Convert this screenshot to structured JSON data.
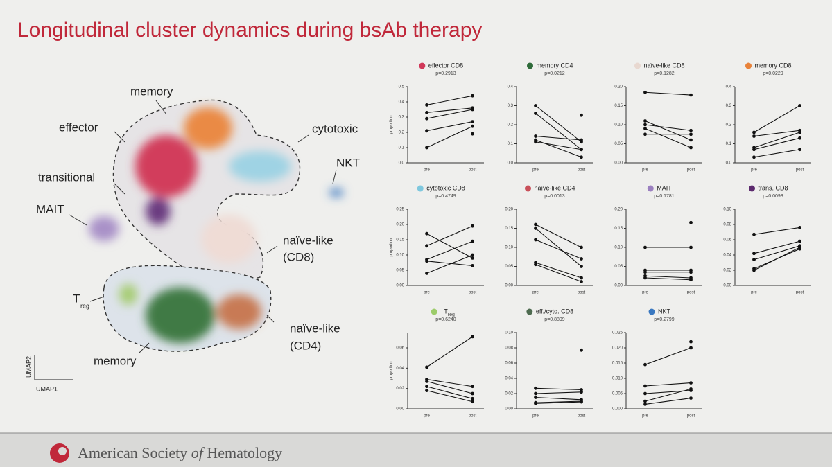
{
  "title": "Longitudinal cluster dynamics during bsAb therapy",
  "umap": {
    "labels": [
      "memory",
      "effector",
      "transitional",
      "MAIT",
      "cytotoxic",
      "NKT",
      "naïve-like",
      "(CD8)",
      "T",
      "reg",
      "memory",
      "naïve-like",
      "(CD4)"
    ],
    "xlabel": "UMAP1",
    "ylabel": "UMAP2"
  },
  "footer": {
    "org_a": "American Society",
    "org_of": "of",
    "org_b": "Hematology"
  },
  "chart_data": [
    {
      "type": "line",
      "title": "effector CD8",
      "subtitle": "p=0.2913",
      "color": "#d1395a",
      "ylabel": "proportion",
      "categories": [
        "pre",
        "post"
      ],
      "ylim": [
        0,
        0.5
      ],
      "yticks": [
        {
          "value": 0,
          "label": "0.0"
        },
        0.1,
        0.2,
        0.3,
        0.4,
        0.5
      ],
      "series": [
        {
          "values": [
            0.38,
            0.44
          ]
        },
        {
          "values": [
            0.33,
            0.36
          ]
        },
        {
          "values": [
            0.29,
            0.35
          ]
        },
        {
          "values": [
            0.21,
            0.27
          ]
        },
        {
          "values": [
            0.1,
            0.24
          ]
        },
        {
          "values": [
            null,
            0.19
          ]
        }
      ]
    },
    {
      "type": "line",
      "title": "memory CD4",
      "subtitle": "p=0.0212",
      "color": "#2f6b3a",
      "categories": [
        "pre",
        "post"
      ],
      "ylim": [
        0,
        0.4
      ],
      "yticks": [
        {
          "value": 0,
          "label": "0.0"
        },
        0.1,
        0.2,
        0.3,
        0.4
      ],
      "series": [
        {
          "values": [
            0.3,
            0.11
          ]
        },
        {
          "values": [
            0.26,
            0.07
          ]
        },
        {
          "values": [
            0.14,
            0.12
          ]
        },
        {
          "values": [
            0.12,
            0.03
          ]
        },
        {
          "values": [
            0.11,
            0.07
          ]
        },
        {
          "values": [
            null,
            0.25
          ]
        }
      ]
    },
    {
      "type": "line",
      "title": "naïve-like CD8",
      "subtitle": "p=0.1282",
      "color": "#e8d8d0",
      "categories": [
        "pre",
        "post"
      ],
      "ylim": [
        0,
        0.2
      ],
      "yticks": [
        {
          "value": 0,
          "label": "0.00"
        },
        0.05,
        {
          "value": 0.1,
          "label": "0.10"
        },
        0.15,
        {
          "value": 0.2,
          "label": "0.20"
        }
      ],
      "series": [
        {
          "values": [
            0.185,
            0.178
          ]
        },
        {
          "values": [
            0.11,
            0.06
          ]
        },
        {
          "values": [
            0.1,
            0.085
          ]
        },
        {
          "values": [
            0.09,
            0.04
          ]
        },
        {
          "values": [
            0.075,
            0.075
          ]
        }
      ]
    },
    {
      "type": "line",
      "title": "memory CD8",
      "subtitle": "p=0.0229",
      "color": "#e8823a",
      "categories": [
        "pre",
        "post"
      ],
      "ylim": [
        0,
        0.4
      ],
      "yticks": [
        {
          "value": 0,
          "label": "0.0"
        },
        0.1,
        0.2,
        0.3,
        0.4
      ],
      "series": [
        {
          "values": [
            0.16,
            0.3
          ]
        },
        {
          "values": [
            0.14,
            0.17
          ]
        },
        {
          "values": [
            0.08,
            0.16
          ]
        },
        {
          "values": [
            0.07,
            0.13
          ]
        },
        {
          "values": [
            0.03,
            0.07
          ]
        }
      ]
    },
    {
      "type": "line",
      "title": "cytotoxic CD8",
      "subtitle": "p=0.4749",
      "color": "#7fc8de",
      "ylabel": "proportion",
      "categories": [
        "pre",
        "post"
      ],
      "ylim": [
        0,
        0.25
      ],
      "yticks": [
        {
          "value": 0,
          "label": "0.00"
        },
        0.05,
        {
          "value": 0.1,
          "label": "0.10"
        },
        0.15,
        {
          "value": 0.2,
          "label": "0.20"
        },
        0.25
      ],
      "series": [
        {
          "values": [
            0.17,
            0.09
          ]
        },
        {
          "values": [
            0.13,
            0.195
          ]
        },
        {
          "values": [
            0.085,
            0.145
          ]
        },
        {
          "values": [
            0.08,
            0.065
          ]
        },
        {
          "values": [
            0.04,
            0.1
          ]
        }
      ]
    },
    {
      "type": "line",
      "title": "naïve-like CD4",
      "subtitle": "p=0.0013",
      "color": "#c9505a",
      "categories": [
        "pre",
        "post"
      ],
      "ylim": [
        0,
        0.2
      ],
      "yticks": [
        {
          "value": 0,
          "label": "0.00"
        },
        0.05,
        {
          "value": 0.1,
          "label": "0.10"
        },
        0.15,
        {
          "value": 0.2,
          "label": "0.20"
        }
      ],
      "series": [
        {
          "values": [
            0.16,
            0.1
          ]
        },
        {
          "values": [
            0.15,
            0.05
          ]
        },
        {
          "values": [
            0.12,
            0.07
          ]
        },
        {
          "values": [
            0.06,
            0.02
          ]
        },
        {
          "values": [
            0.055,
            0.01
          ]
        }
      ]
    },
    {
      "type": "line",
      "title": "MAIT",
      "subtitle": "p=0.1781",
      "color": "#9b80c0",
      "categories": [
        "pre",
        "post"
      ],
      "ylim": [
        0,
        0.2
      ],
      "yticks": [
        {
          "value": 0,
          "label": "0.00"
        },
        0.05,
        {
          "value": 0.1,
          "label": "0.10"
        },
        0.15,
        {
          "value": 0.2,
          "label": "0.20"
        }
      ],
      "series": [
        {
          "values": [
            0.1,
            0.1
          ]
        },
        {
          "values": [
            0.04,
            0.04
          ]
        },
        {
          "values": [
            0.035,
            0.035
          ]
        },
        {
          "values": [
            0.025,
            0.02
          ]
        },
        {
          "values": [
            0.02,
            0.015
          ]
        },
        {
          "values": [
            null,
            0.165
          ]
        }
      ]
    },
    {
      "type": "line",
      "title": "trans. CD8",
      "subtitle": "p=0.0093",
      "color": "#5c2a6e",
      "categories": [
        "pre",
        "post"
      ],
      "ylim": [
        0,
        0.1
      ],
      "yticks": [
        {
          "value": 0,
          "label": "0.00"
        },
        0.02,
        0.04,
        0.06,
        0.08,
        {
          "value": 0.1,
          "label": "0.10"
        }
      ],
      "series": [
        {
          "values": [
            0.067,
            0.076
          ]
        },
        {
          "values": [
            0.042,
            0.058
          ]
        },
        {
          "values": [
            0.034,
            0.052
          ]
        },
        {
          "values": [
            0.022,
            0.048
          ]
        },
        {
          "values": [
            0.02,
            0.05
          ]
        }
      ]
    },
    {
      "type": "line",
      "title": "T",
      "title_sub": "reg",
      "subtitle": "p=0.6240",
      "color": "#9ccc6a",
      "ylabel": "proportion",
      "categories": [
        "pre",
        "post"
      ],
      "ylim": [
        0,
        0.075
      ],
      "yticks": [
        {
          "value": 0,
          "label": "0.00"
        },
        0.02,
        0.04,
        0.06
      ],
      "series": [
        {
          "values": [
            0.041,
            0.071
          ]
        },
        {
          "values": [
            0.029,
            0.022
          ]
        },
        {
          "values": [
            0.027,
            0.015
          ]
        },
        {
          "values": [
            0.022,
            0.01
          ]
        },
        {
          "values": [
            0.018,
            0.007
          ]
        }
      ]
    },
    {
      "type": "line",
      "title": "eff./cyto. CD8",
      "subtitle": "p=0.8899",
      "color": "#4e6b50",
      "categories": [
        "pre",
        "post"
      ],
      "ylim": [
        0,
        0.1
      ],
      "yticks": [
        {
          "value": 0,
          "label": "0.00"
        },
        0.02,
        0.04,
        0.06,
        0.08,
        {
          "value": 0.1,
          "label": "0.10"
        }
      ],
      "series": [
        {
          "values": [
            0.027,
            0.025
          ]
        },
        {
          "values": [
            0.02,
            0.022
          ]
        },
        {
          "values": [
            0.015,
            0.012
          ]
        },
        {
          "values": [
            0.008,
            0.01
          ]
        },
        {
          "values": [
            0.007,
            0.009
          ]
        },
        {
          "values": [
            null,
            0.077
          ]
        }
      ]
    },
    {
      "type": "line",
      "title": "NKT",
      "subtitle": "p=0.2799",
      "color": "#3a78c0",
      "categories": [
        "pre",
        "post"
      ],
      "ylim": [
        0,
        0.025
      ],
      "yticks": [
        {
          "value": 0,
          "label": "0.000"
        },
        0.005,
        {
          "value": 0.01,
          "label": "0.010"
        },
        0.015,
        {
          "value": 0.02,
          "label": "0.020"
        },
        0.025
      ],
      "series": [
        {
          "values": [
            0.0145,
            0.02
          ]
        },
        {
          "values": [
            0.0075,
            0.0085
          ]
        },
        {
          "values": [
            0.005,
            0.006
          ]
        },
        {
          "values": [
            0.0025,
            0.0065
          ]
        },
        {
          "values": [
            0.0015,
            0.0035
          ]
        },
        {
          "values": [
            null,
            0.022
          ]
        }
      ]
    }
  ]
}
